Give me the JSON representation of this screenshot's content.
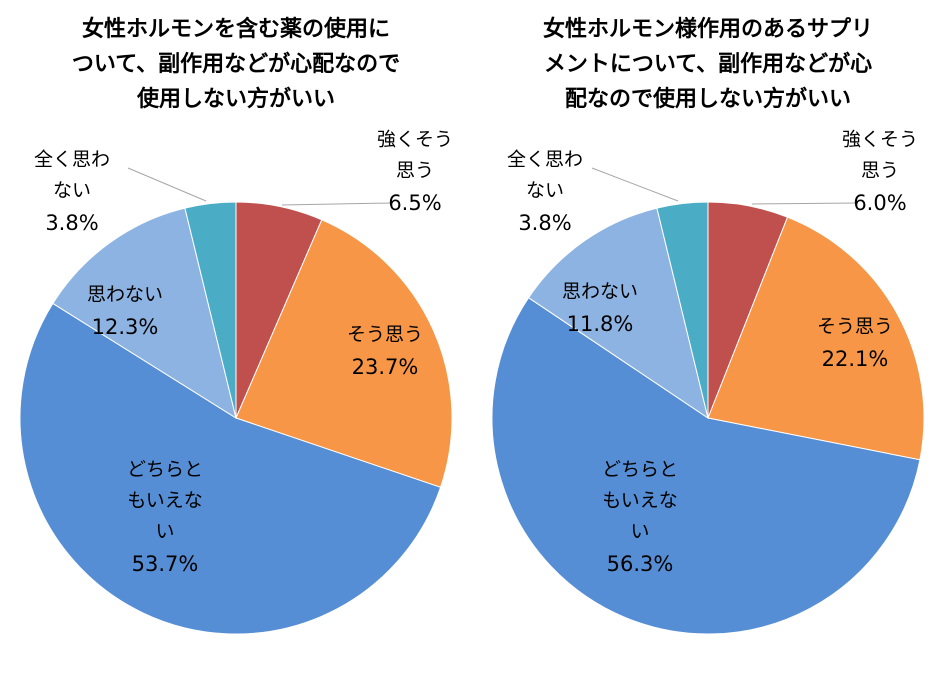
{
  "chart_data": [
    {
      "type": "pie",
      "title": [
        "女性ホルモンを含む薬の使用に",
        "ついて、副作用などが心配なので",
        "使用しない方がいい"
      ],
      "categories": [
        [
          "強くそう",
          "思う"
        ],
        [
          "そう思う"
        ],
        [
          "どちらと",
          "もいえな",
          "い"
        ],
        [
          "思わない"
        ],
        [
          "全く思わ",
          "ない"
        ]
      ],
      "values": [
        6.5,
        23.7,
        53.7,
        12.3,
        3.8
      ],
      "value_labels": [
        "6.5%",
        "23.7%",
        "53.7%",
        "12.3%",
        "3.8%"
      ],
      "colors": [
        "#c0504d",
        "#f79646",
        "#558ed5",
        "#8db3e2",
        "#4bacc6"
      ]
    },
    {
      "type": "pie",
      "title": [
        "女性ホルモン様作用のあるサプリ",
        "メントについて、副作用などが心",
        "配なので使用しない方がいい"
      ],
      "categories": [
        [
          "強くそう",
          "思う"
        ],
        [
          "そう思う"
        ],
        [
          "どちらと",
          "もいえな",
          "い"
        ],
        [
          "思わない"
        ],
        [
          "全く思わ",
          "ない"
        ]
      ],
      "values": [
        6.0,
        22.1,
        56.3,
        11.8,
        3.8
      ],
      "value_labels": [
        "6.0%",
        "22.1%",
        "56.3%",
        "11.8%",
        "3.8%"
      ],
      "colors": [
        "#c0504d",
        "#f79646",
        "#558ed5",
        "#8db3e2",
        "#4bacc6"
      ]
    }
  ]
}
